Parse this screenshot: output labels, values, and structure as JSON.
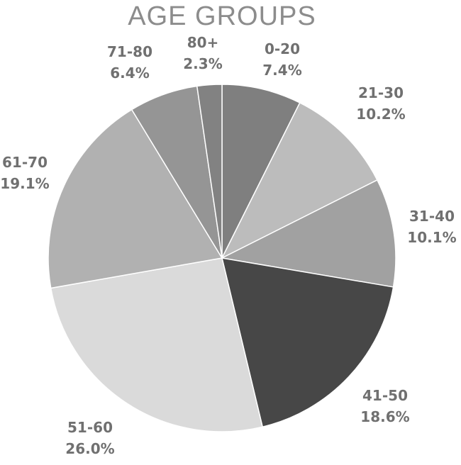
{
  "chart_data": {
    "type": "pie",
    "title": "AGE GROUPS",
    "categories": [
      "0-20",
      "21-30",
      "31-40",
      "41-50",
      "51-60",
      "61-70",
      "71-80",
      "80+"
    ],
    "values": [
      7.4,
      10.2,
      10.1,
      18.6,
      26.0,
      19.1,
      6.4,
      2.3
    ],
    "value_labels": [
      "7.4%",
      "10.2%",
      "10.1%",
      "18.6%",
      "26.0%",
      "19.1%",
      "6.4%",
      "2.3%"
    ],
    "colors": [
      "#7f7f7f",
      "#bcbcbc",
      "#a1a1a1",
      "#474747",
      "#dadada",
      "#b1b1b1",
      "#959595",
      "#828282"
    ],
    "start": "top",
    "direction": "clockwise",
    "legend": "none"
  }
}
